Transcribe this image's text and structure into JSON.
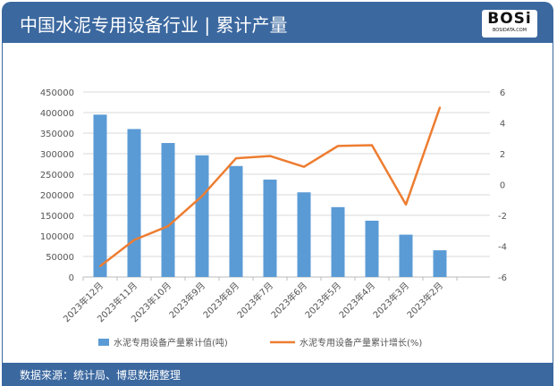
{
  "header": {
    "title": "中国水泥专用设备行业 | 累计产量",
    "logo": "BOSi BOSIDATA.COM"
  },
  "footer": {
    "source": "数据来源：统计局、博思数据整理"
  },
  "colors": {
    "bar": "#5b9bd5",
    "line": "#ed7d31",
    "header": "#3b689f"
  },
  "chart_data": {
    "type": "bar+line",
    "categories": [
      "2023年12月",
      "2023年11月",
      "2023年10月",
      "2023年9月",
      "2023年8月",
      "2023年7月",
      "2023年6月",
      "2023年5月",
      "2023年4月",
      "2023年3月",
      "2023年2月"
    ],
    "series": [
      {
        "name": "水泥专用设备产量累计值(吨)",
        "type": "bar",
        "axis": "left",
        "values": [
          395000,
          360000,
          326000,
          296000,
          270000,
          237000,
          206000,
          170000,
          137000,
          103000,
          65000
        ]
      },
      {
        "name": "水泥专用设备产量累计增长(%)",
        "type": "line",
        "axis": "right",
        "values": [
          -5.3,
          -3.6,
          -2.7,
          -0.75,
          1.7,
          1.85,
          1.15,
          2.5,
          2.55,
          -1.3,
          5.0
        ]
      }
    ],
    "left_ylim": [
      0,
      450000
    ],
    "left_ticks": [
      0,
      50000,
      100000,
      150000,
      200000,
      250000,
      300000,
      350000,
      400000,
      450000
    ],
    "right_ylim": [
      -6,
      6
    ],
    "right_ticks": [
      -6,
      -4,
      -2,
      0,
      2,
      4,
      6
    ],
    "grid": true,
    "legend": "bottom"
  }
}
